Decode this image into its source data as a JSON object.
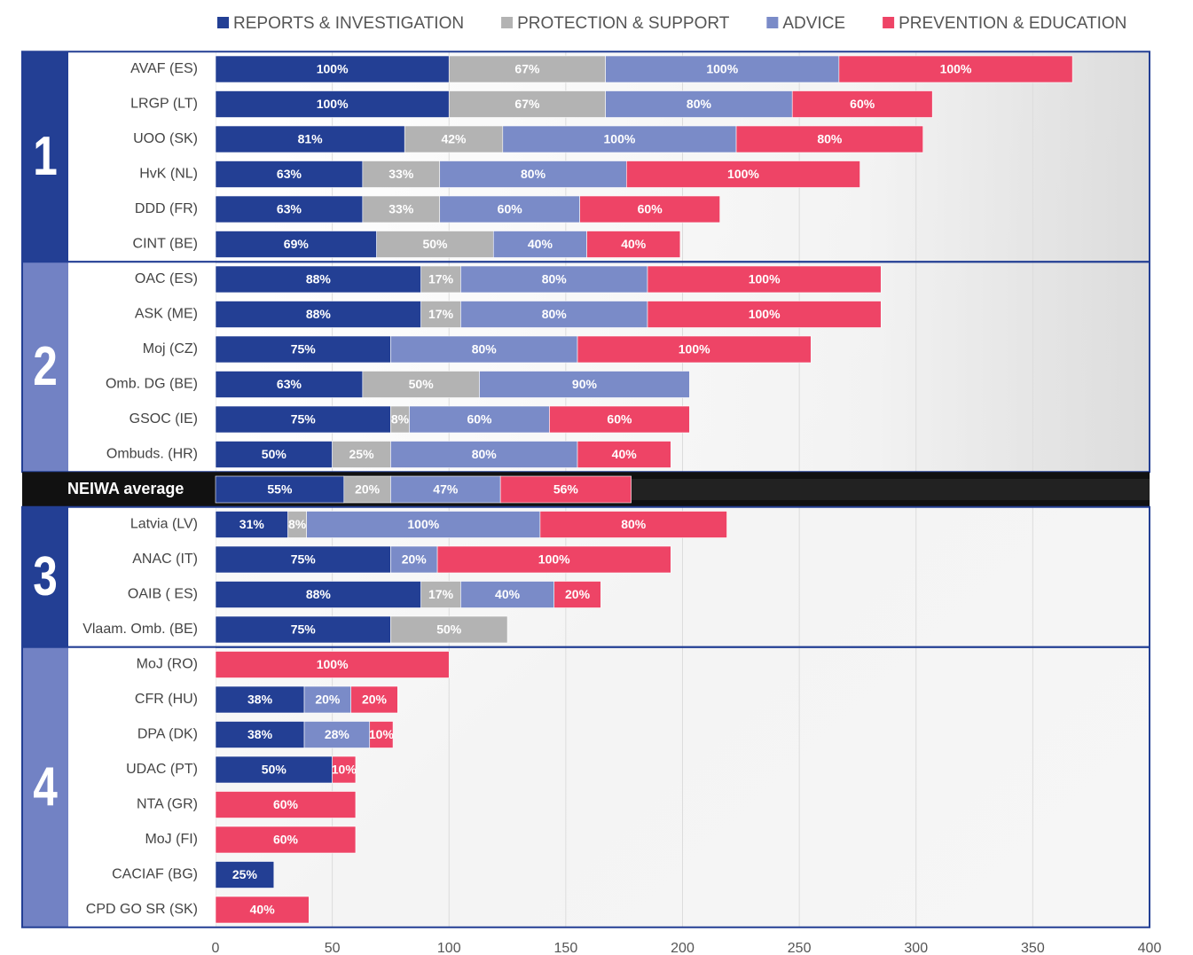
{
  "chart_data": {
    "type": "bar",
    "orientation": "horizontal",
    "stacked": true,
    "series": [
      {
        "name": "REPORTS & INVESTIGATION",
        "color": "#233f94"
      },
      {
        "name": "PROTECTION & SUPPORT",
        "color": "#b3b3b3"
      },
      {
        "name": "ADVICE",
        "color": "#7a8bc8"
      },
      {
        "name": "PREVENTION & EDUCATION",
        "color": "#ee4466"
      }
    ],
    "groups": [
      {
        "label": "1",
        "color": "#233f94",
        "categories": [
          "AVAF (ES)",
          "LRGP (LT)",
          "UOO (SK)",
          "HvK (NL)",
          "DDD (FR)",
          "CINT (BE)"
        ],
        "values": [
          [
            100,
            67,
            100,
            100
          ],
          [
            100,
            67,
            80,
            60
          ],
          [
            81,
            42,
            100,
            80
          ],
          [
            63,
            33,
            80,
            100
          ],
          [
            63,
            33,
            60,
            60
          ],
          [
            69,
            50,
            40,
            40
          ]
        ],
        "value_labels": [
          [
            "100%",
            "67%",
            "100%",
            "100%"
          ],
          [
            "100%",
            "67%",
            "80%",
            "60%"
          ],
          [
            "81%",
            "42%",
            "100%",
            "80%"
          ],
          [
            "63%",
            "33%",
            "80%",
            "100%"
          ],
          [
            "63%",
            "33%",
            "60%",
            "60%"
          ],
          [
            "69%",
            "50%",
            "40%",
            "40%"
          ]
        ]
      },
      {
        "label": "2",
        "color": "#7282c4",
        "categories": [
          "OAC (ES)",
          "ASK (ME)",
          "Moj (CZ)",
          "Omb. DG (BE)",
          "GSOC (IE)",
          "Ombuds. (HR)"
        ],
        "values": [
          [
            88,
            17,
            80,
            100
          ],
          [
            88,
            17,
            80,
            100
          ],
          [
            75,
            null,
            80,
            100
          ],
          [
            63,
            50,
            90,
            null
          ],
          [
            75,
            8,
            60,
            60
          ],
          [
            50,
            25,
            80,
            40
          ]
        ],
        "value_labels": [
          [
            "88%",
            "17%",
            "80%",
            "100%"
          ],
          [
            "88%",
            "17%",
            "80%",
            "100%"
          ],
          [
            "75%",
            null,
            "80%",
            "100%"
          ],
          [
            "63%",
            "50%",
            "90%",
            null
          ],
          [
            "75%",
            "8%",
            "60%",
            "60%"
          ],
          [
            "50%",
            "25%",
            "80%",
            "40%"
          ]
        ]
      },
      {
        "label": "3",
        "color": "#233f94",
        "categories": [
          "Latvia (LV)",
          "ANAC (IT)",
          "OAIB ( ES)",
          "Vlaam. Omb. (BE)"
        ],
        "values": [
          [
            31,
            8,
            100,
            80
          ],
          [
            75,
            null,
            20,
            100
          ],
          [
            88,
            17,
            40,
            20
          ],
          [
            75,
            50,
            null,
            null
          ]
        ],
        "value_labels": [
          [
            "31%",
            "8%",
            "100%",
            "80%"
          ],
          [
            "75%",
            null,
            "20%",
            "100%"
          ],
          [
            "88%",
            "17%",
            "40%",
            "20%"
          ],
          [
            "75%",
            "50%",
            null,
            null
          ]
        ]
      },
      {
        "label": "4",
        "color": "#7282c4",
        "categories": [
          "MoJ (RO)",
          "CFR (HU)",
          "DPA (DK)",
          "UDAC (PT)",
          "NTA (GR)",
          "MoJ (FI)",
          "CACIAF (BG)",
          "CPD GO SR (SK)"
        ],
        "values": [
          [
            null,
            null,
            null,
            100
          ],
          [
            38,
            null,
            20,
            20
          ],
          [
            38,
            null,
            28,
            10
          ],
          [
            50,
            null,
            null,
            10
          ],
          [
            null,
            null,
            null,
            60
          ],
          [
            null,
            null,
            null,
            60
          ],
          [
            25,
            null,
            null,
            null
          ],
          [
            null,
            null,
            null,
            40
          ]
        ],
        "value_labels": [
          [
            null,
            null,
            null,
            "100%"
          ],
          [
            "38%",
            null,
            "20%",
            "20%"
          ],
          [
            "38%",
            null,
            "28%",
            "10%"
          ],
          [
            "50%",
            null,
            null,
            "10%"
          ],
          [
            null,
            null,
            null,
            "60%"
          ],
          [
            null,
            null,
            null,
            "60%"
          ],
          [
            "25%",
            null,
            null,
            null
          ],
          [
            null,
            null,
            null,
            "40%"
          ]
        ]
      }
    ],
    "average": {
      "category": "NEIWA average",
      "after_group": 1,
      "values": [
        55,
        20,
        47,
        56
      ],
      "value_labels": [
        "55%",
        "20%",
        "47%",
        "56%"
      ]
    },
    "xlim": [
      0,
      400
    ],
    "xticks": [
      0,
      50,
      100,
      150,
      200,
      250,
      300,
      350,
      400
    ],
    "grid": true
  }
}
